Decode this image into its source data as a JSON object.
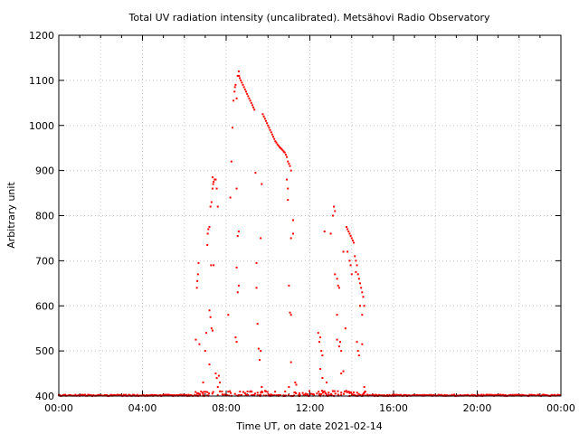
{
  "chart_data": {
    "type": "scatter",
    "title": "Total UV radiation intensity (uncalibrated). Metsähovi Radio Observatory",
    "xlabel": "Time UT, on date 2021-02-14",
    "ylabel": "Arbitrary unit",
    "x_unit": "hours UT",
    "xlim": [
      0,
      24
    ],
    "ylim": [
      400,
      1200
    ],
    "x_ticks": [
      {
        "value": 0,
        "label": "00:00"
      },
      {
        "value": 4,
        "label": "04:00"
      },
      {
        "value": 8,
        "label": "08:00"
      },
      {
        "value": 12,
        "label": "12:00"
      },
      {
        "value": 16,
        "label": "16:00"
      },
      {
        "value": 20,
        "label": "20:00"
      },
      {
        "value": 24,
        "label": "00:00"
      }
    ],
    "y_ticks": [
      400,
      500,
      600,
      700,
      800,
      900,
      1000,
      1100,
      1200
    ],
    "grid": true,
    "marker_color": "#ff0000",
    "series": [
      {
        "points": [
          [
            6.55,
            525
          ],
          [
            6.6,
            640
          ],
          [
            6.62,
            655
          ],
          [
            6.65,
            670
          ],
          [
            6.68,
            695
          ],
          [
            6.72,
            515
          ],
          [
            6.8,
            410
          ],
          [
            6.9,
            430
          ],
          [
            7.0,
            500
          ],
          [
            7.05,
            540
          ],
          [
            7.1,
            735
          ],
          [
            7.12,
            760
          ],
          [
            7.15,
            770
          ],
          [
            7.2,
            775
          ],
          [
            7.25,
            820
          ],
          [
            7.3,
            830
          ],
          [
            7.35,
            860
          ],
          [
            7.35,
            885
          ],
          [
            7.38,
            870
          ],
          [
            7.4,
            875
          ],
          [
            7.45,
            880
          ],
          [
            7.5,
            880
          ],
          [
            7.55,
            860
          ],
          [
            7.6,
            820
          ],
          [
            7.2,
            590
          ],
          [
            7.25,
            575
          ],
          [
            7.3,
            550
          ],
          [
            7.35,
            545
          ],
          [
            7.28,
            690
          ],
          [
            7.4,
            690
          ],
          [
            7.2,
            470
          ],
          [
            7.5,
            450
          ],
          [
            7.55,
            440
          ],
          [
            7.6,
            420
          ],
          [
            7.65,
            445
          ],
          [
            7.7,
            430
          ],
          [
            7.8,
            410
          ],
          [
            8.1,
            580
          ],
          [
            8.2,
            840
          ],
          [
            8.25,
            920
          ],
          [
            8.3,
            995
          ],
          [
            8.35,
            1055
          ],
          [
            8.4,
            1075
          ],
          [
            8.42,
            1085
          ],
          [
            8.45,
            1090
          ],
          [
            8.5,
            1060
          ],
          [
            8.55,
            1110
          ],
          [
            8.6,
            1120
          ],
          [
            8.62,
            1110
          ],
          [
            8.65,
            1105
          ],
          [
            8.7,
            1100
          ],
          [
            8.75,
            1095
          ],
          [
            8.8,
            1090
          ],
          [
            8.85,
            1085
          ],
          [
            8.9,
            1080
          ],
          [
            8.95,
            1075
          ],
          [
            9.0,
            1070
          ],
          [
            9.05,
            1065
          ],
          [
            9.1,
            1060
          ],
          [
            9.15,
            1055
          ],
          [
            9.2,
            1050
          ],
          [
            9.25,
            1045
          ],
          [
            9.3,
            1040
          ],
          [
            9.35,
            1035
          ],
          [
            8.5,
            860
          ],
          [
            8.55,
            755
          ],
          [
            8.6,
            765
          ],
          [
            8.55,
            630
          ],
          [
            8.6,
            645
          ],
          [
            8.5,
            685
          ],
          [
            8.45,
            530
          ],
          [
            8.5,
            520
          ],
          [
            9.4,
            895
          ],
          [
            9.45,
            695
          ],
          [
            9.45,
            640
          ],
          [
            9.5,
            560
          ],
          [
            9.55,
            505
          ],
          [
            9.6,
            480
          ],
          [
            9.65,
            500
          ],
          [
            9.7,
            420
          ],
          [
            9.65,
            750
          ],
          [
            9.7,
            870
          ],
          [
            9.75,
            1025
          ],
          [
            9.8,
            1020
          ],
          [
            9.85,
            1015
          ],
          [
            9.9,
            1010
          ],
          [
            9.95,
            1005
          ],
          [
            10.0,
            1000
          ],
          [
            10.05,
            995
          ],
          [
            10.1,
            990
          ],
          [
            10.15,
            985
          ],
          [
            10.2,
            980
          ],
          [
            10.25,
            975
          ],
          [
            10.3,
            970
          ],
          [
            10.35,
            965
          ],
          [
            10.4,
            962
          ],
          [
            10.45,
            958
          ],
          [
            10.5,
            955
          ],
          [
            10.55,
            952
          ],
          [
            10.6,
            950
          ],
          [
            10.65,
            948
          ],
          [
            10.7,
            945
          ],
          [
            10.75,
            942
          ],
          [
            10.8,
            940
          ],
          [
            10.85,
            935
          ],
          [
            10.9,
            930
          ],
          [
            10.95,
            920
          ],
          [
            11.0,
            915
          ],
          [
            11.05,
            910
          ],
          [
            11.1,
            900
          ],
          [
            10.9,
            880
          ],
          [
            10.95,
            860
          ],
          [
            10.95,
            835
          ],
          [
            11.0,
            645
          ],
          [
            11.05,
            585
          ],
          [
            11.1,
            580
          ],
          [
            11.1,
            750
          ],
          [
            11.2,
            760
          ],
          [
            11.2,
            790
          ],
          [
            11.3,
            430
          ],
          [
            11.35,
            425
          ],
          [
            11.0,
            420
          ],
          [
            11.1,
            475
          ],
          [
            11.5,
            400
          ],
          [
            11.8,
            405
          ],
          [
            12.4,
            540
          ],
          [
            12.45,
            520
          ],
          [
            12.5,
            530
          ],
          [
            12.55,
            500
          ],
          [
            12.6,
            490
          ],
          [
            12.7,
            765
          ],
          [
            12.5,
            460
          ],
          [
            12.6,
            440
          ],
          [
            12.8,
            430
          ],
          [
            13.0,
            760
          ],
          [
            13.1,
            800
          ],
          [
            13.15,
            820
          ],
          [
            13.2,
            810
          ],
          [
            13.2,
            670
          ],
          [
            13.3,
            660
          ],
          [
            13.35,
            645
          ],
          [
            13.4,
            640
          ],
          [
            13.3,
            580
          ],
          [
            13.3,
            525
          ],
          [
            13.4,
            510
          ],
          [
            13.45,
            520
          ],
          [
            13.5,
            500
          ],
          [
            13.5,
            450
          ],
          [
            13.6,
            455
          ],
          [
            13.6,
            720
          ],
          [
            13.7,
            550
          ],
          [
            13.75,
            775
          ],
          [
            13.8,
            770
          ],
          [
            13.85,
            765
          ],
          [
            13.9,
            760
          ],
          [
            13.95,
            755
          ],
          [
            14.0,
            750
          ],
          [
            14.05,
            745
          ],
          [
            14.1,
            740
          ],
          [
            14.15,
            710
          ],
          [
            14.2,
            700
          ],
          [
            14.25,
            690
          ],
          [
            14.3,
            670
          ],
          [
            14.35,
            660
          ],
          [
            14.4,
            650
          ],
          [
            14.45,
            640
          ],
          [
            14.5,
            630
          ],
          [
            14.55,
            620
          ],
          [
            14.6,
            600
          ],
          [
            14.2,
            675
          ],
          [
            14.25,
            520
          ],
          [
            14.3,
            500
          ],
          [
            14.35,
            490
          ],
          [
            14.4,
            600
          ],
          [
            14.5,
            580
          ],
          [
            14.5,
            515
          ],
          [
            14.6,
            420
          ],
          [
            14.65,
            410
          ],
          [
            13.8,
            720
          ],
          [
            13.9,
            700
          ],
          [
            13.95,
            690
          ],
          [
            14.0,
            670
          ]
        ]
      }
    ]
  }
}
